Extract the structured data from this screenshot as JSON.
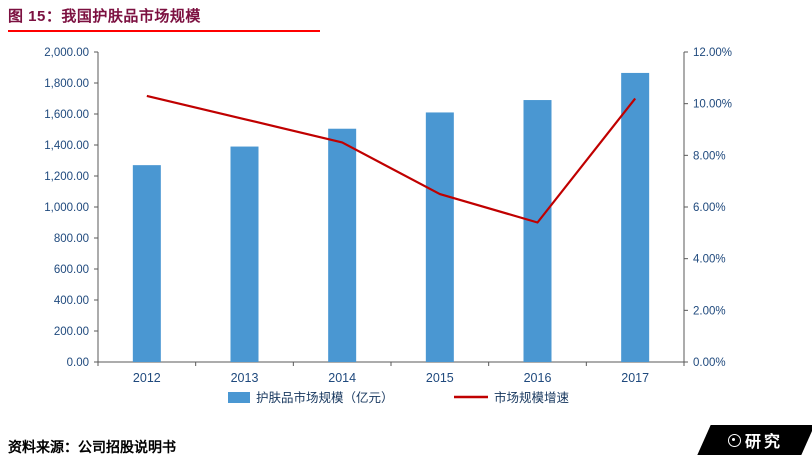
{
  "header": {
    "figure_label": "图 15：",
    "title": "我国护肤品市场规模"
  },
  "footer": {
    "source": "资料来源：公司招股说明书",
    "logo_text": "研究"
  },
  "colors": {
    "bar": "#4a97d2",
    "line": "#c00000",
    "axis_text": "#1f497d",
    "axis_line": "#595959",
    "title": "#7c1040",
    "underline": "#ff0000"
  },
  "chart_data": {
    "type": "bar",
    "subtype": "bar+line combo, dual axis",
    "categories": [
      "2012",
      "2013",
      "2014",
      "2015",
      "2016",
      "2017"
    ],
    "series": [
      {
        "name": "护肤品市场规模（亿元）",
        "type": "bar",
        "axis": "left",
        "color": "#4a97d2",
        "values": [
          1270,
          1390,
          1505,
          1610,
          1690,
          1865
        ]
      },
      {
        "name": "市场规模增速",
        "type": "line",
        "axis": "right",
        "color": "#c00000",
        "values": [
          10.3,
          9.4,
          8.5,
          6.5,
          5.4,
          10.2
        ]
      }
    ],
    "left_axis": {
      "min": 0,
      "max": 2000,
      "step": 200,
      "tick_labels_top_to_bottom": [
        "2,000.00",
        "1,800.00",
        "1,600.00",
        "1,400.00",
        "1,200.00",
        "1,000.00",
        "800.00",
        "600.00",
        "400.00",
        "200.00",
        "0.00"
      ]
    },
    "right_axis": {
      "min": 0,
      "max": 12,
      "step": 2,
      "tick_labels_top_to_bottom": [
        "12.00%",
        "10.00%",
        "8.00%",
        "6.00%",
        "4.00%",
        "2.00%",
        "0.00%"
      ]
    },
    "grid": false,
    "legend_position": "bottom",
    "title": "我国护肤品市场规模"
  }
}
